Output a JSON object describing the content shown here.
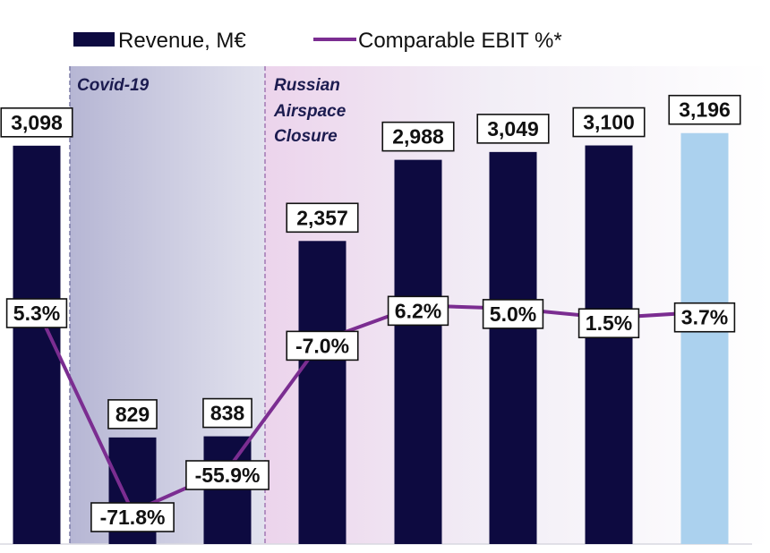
{
  "chart_data": {
    "type": "bar+line",
    "legend": {
      "revenue": "Revenue, M€",
      "ebit": "Comparable EBIT %*"
    },
    "periods": [
      {
        "label_lines": [
          "Covid-19"
        ],
        "start_index": 1,
        "end_index": 2
      },
      {
        "label_lines": [
          "Russian",
          "Airspace",
          "Closure"
        ],
        "start_index": 3,
        "end_index": 9
      }
    ],
    "categories": [
      "",
      "",
      "",
      "",
      "",
      "",
      "",
      ""
    ],
    "series": [
      {
        "name": "Revenue, M€",
        "type": "bar",
        "values": [
          3098,
          829,
          838,
          2357,
          2988,
          3049,
          3100,
          3196
        ],
        "labels": [
          "3,098",
          "829",
          "838",
          "2,357",
          "2,988",
          "3,049",
          "3,100",
          "3,196"
        ],
        "highlight_index": 7
      },
      {
        "name": "Comparable EBIT %*",
        "type": "line",
        "values": [
          5.3,
          -71.8,
          -55.9,
          -7.0,
          6.2,
          5.0,
          1.5,
          3.7
        ],
        "labels": [
          "5.3%",
          "-71.8%",
          "-55.9%",
          "-7.0%",
          "6.2%",
          "5.0%",
          "1.5%",
          "3.7%"
        ]
      }
    ],
    "colors": {
      "bar": "#0d0a40",
      "bar_highlight": "#abd1ee",
      "line": "#7b2d91",
      "covid_shade": "#bcbcd8",
      "russia_shade": "#ead8ee"
    }
  }
}
